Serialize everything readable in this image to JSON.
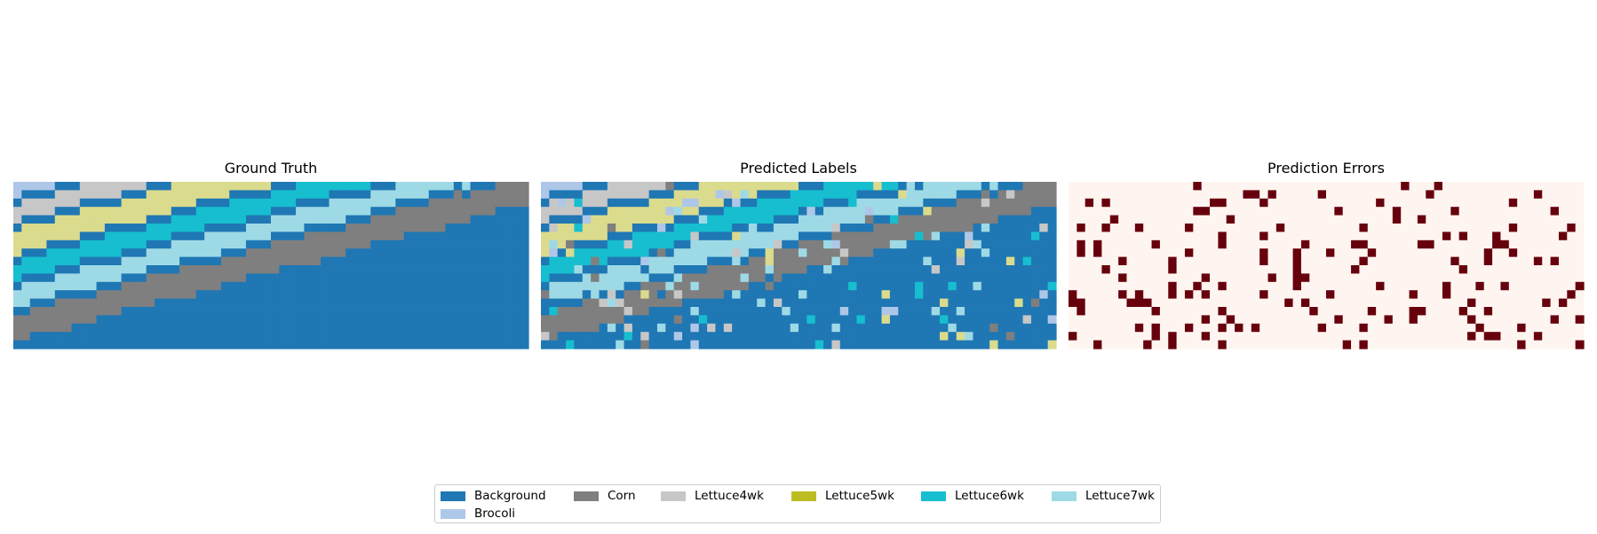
{
  "chart_data": {
    "type": "heatmap",
    "panels": [
      {
        "title": "Ground Truth",
        "kind": "labels"
      },
      {
        "title": "Predicted Labels",
        "kind": "labels"
      },
      {
        "title": "Prediction Errors",
        "kind": "errors"
      }
    ],
    "grid": {
      "rows": 20,
      "cols": 62
    },
    "axes_visible": false,
    "classes": [
      {
        "name": "Background",
        "color": "#1f77b4"
      },
      {
        "name": "Brocoli",
        "color": "#aec7e8"
      },
      {
        "name": "Corn",
        "color": "#7f7f7f"
      },
      {
        "name": "Lettuce4wk",
        "color": "#c7c7c7"
      },
      {
        "name": "Lettuce5wk",
        "color": "#bcbd22"
      },
      {
        "name": "Lettuce6wk",
        "color": "#17becf"
      },
      {
        "name": "Lettuce7wk",
        "color": "#9edae5"
      }
    ],
    "class_order_bottom_to_top": [
      "Background",
      "Corn",
      "Background",
      "Lettuce7wk",
      "Background",
      "Lettuce6wk",
      "Background",
      "Lettuce5wk",
      "Background",
      "Lettuce4wk",
      "Background",
      "Brocoli"
    ],
    "stripe_slope_rows_per_col": -0.27,
    "error_colors": {
      "correct": "#fff5f0",
      "error": "#67000d"
    },
    "approx_error_rate": 0.12,
    "legend": {
      "placement": "lower center",
      "ncol": 6
    }
  }
}
